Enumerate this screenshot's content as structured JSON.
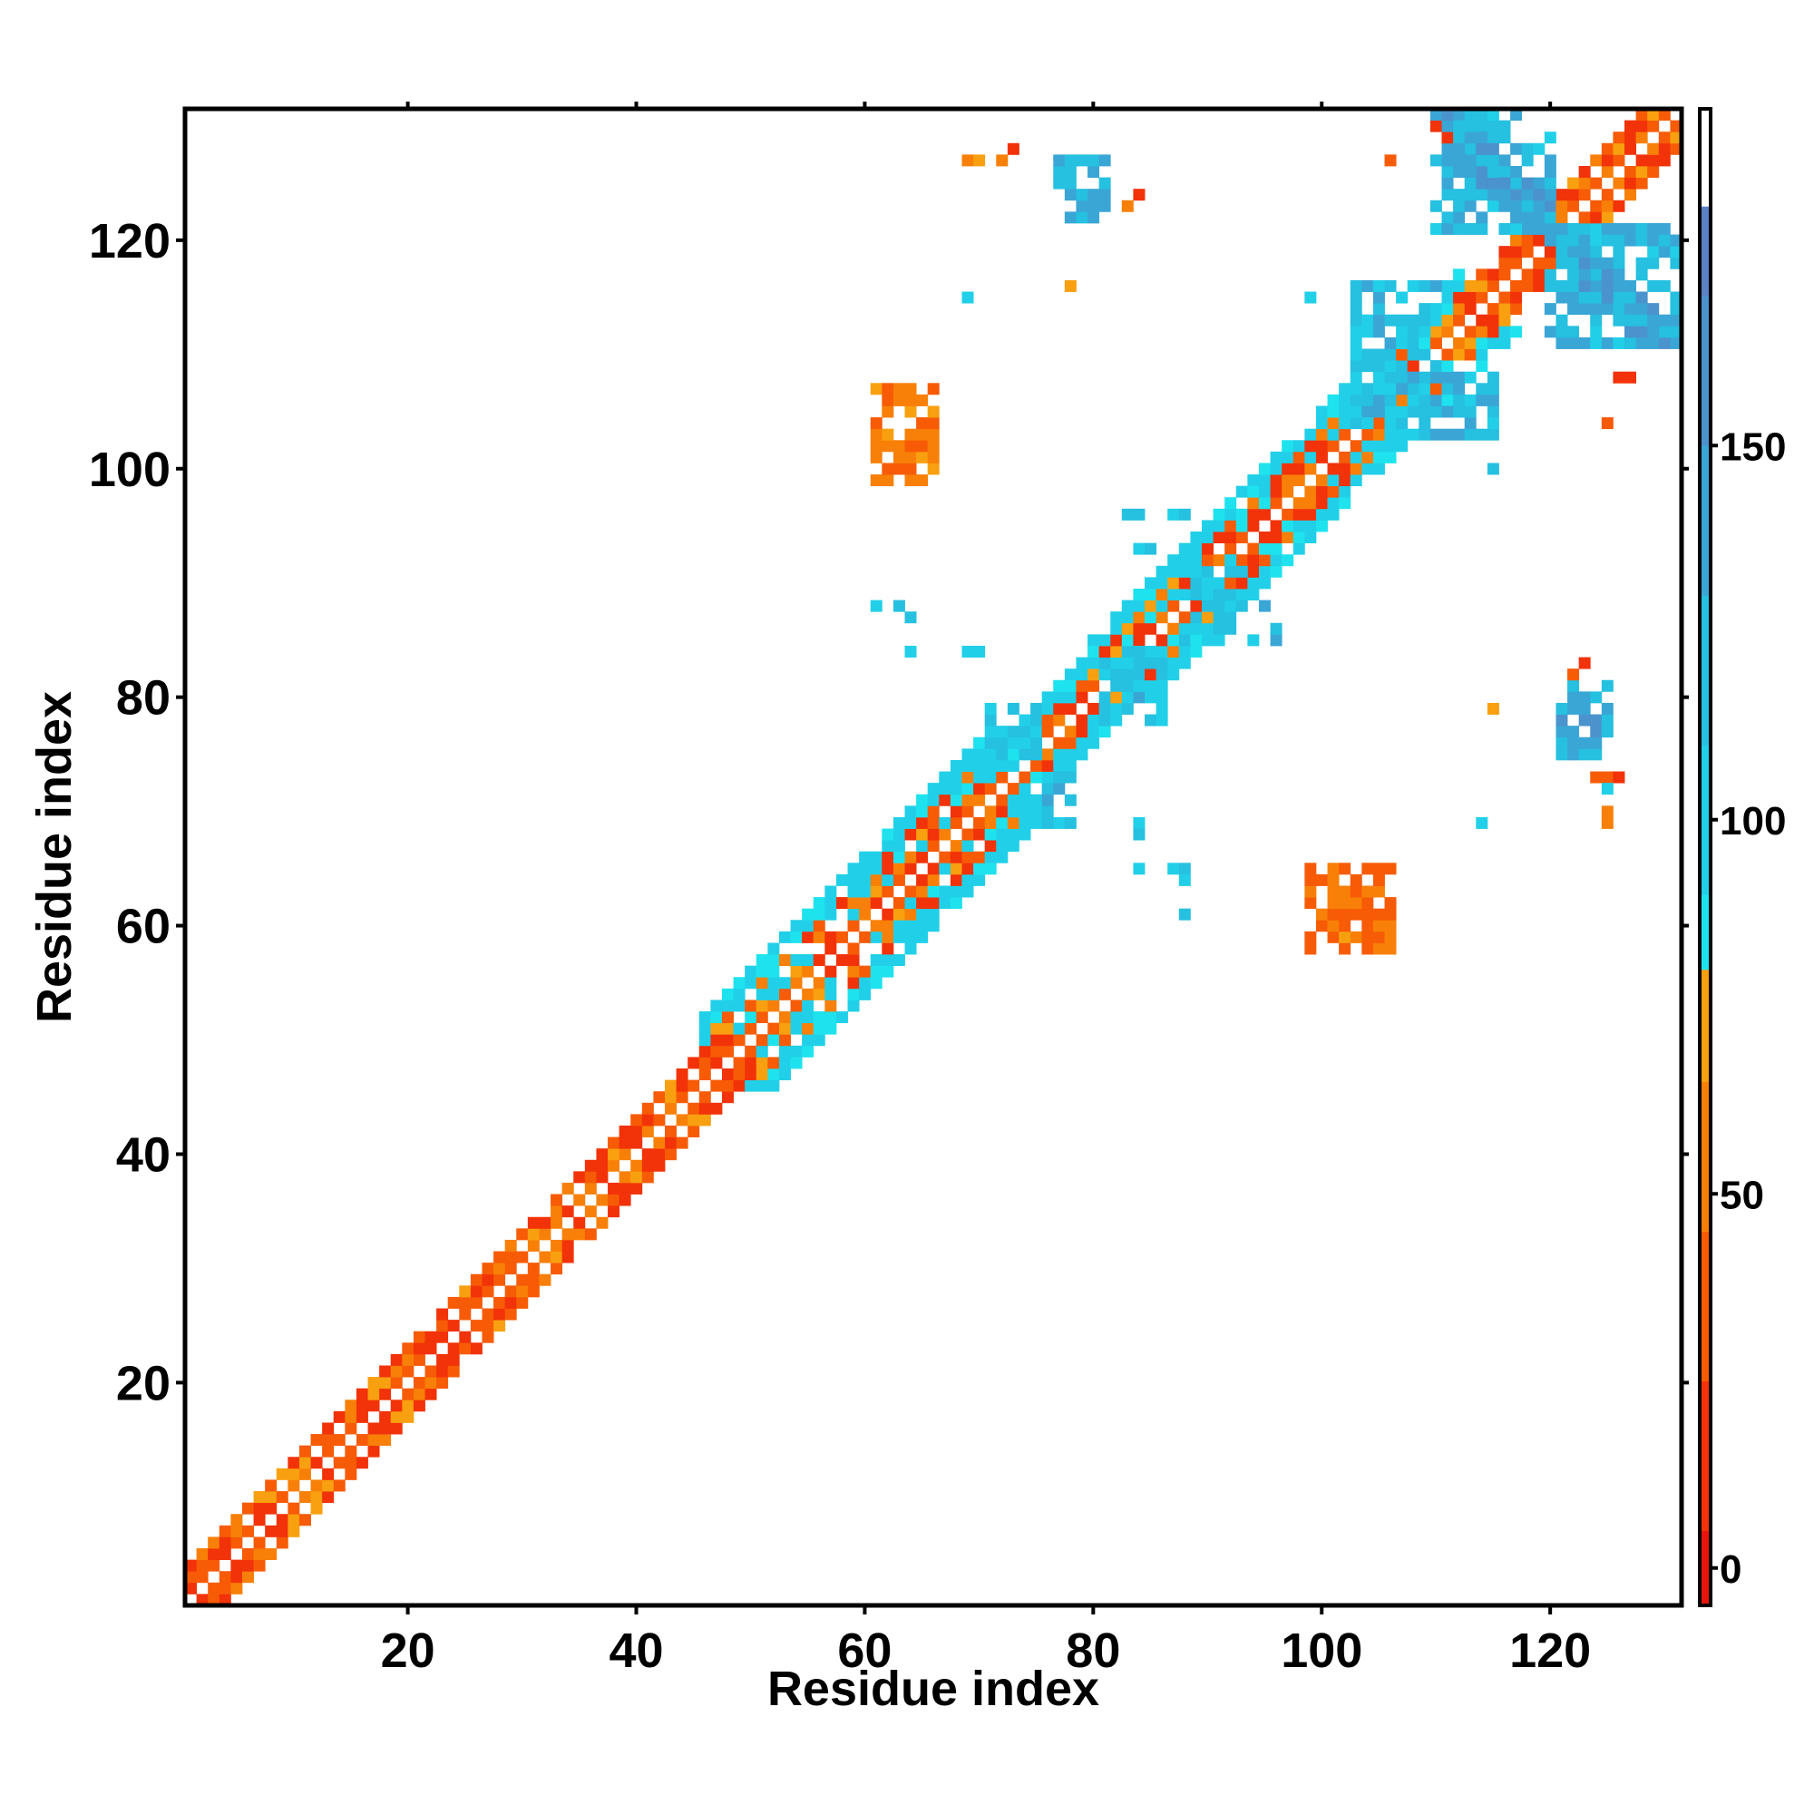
{
  "chart_data": {
    "type": "heatmap",
    "xlabel": "Residue index",
    "ylabel": "Residue index",
    "xlim": [
      1,
      131
    ],
    "ylim": [
      1,
      131
    ],
    "x_ticks": [
      20,
      40,
      60,
      80,
      100,
      120
    ],
    "y_ticks": [
      20,
      40,
      60,
      80,
      100,
      120
    ],
    "colorbar": {
      "range": [
        -5,
        195
      ],
      "ticks": [
        0,
        50,
        100,
        150
      ],
      "bands": [
        {
          "from": -5,
          "to": 5,
          "color": "#e8150c"
        },
        {
          "from": 5,
          "to": 25,
          "color": "#f23208"
        },
        {
          "from": 25,
          "to": 45,
          "color": "#f75b06"
        },
        {
          "from": 45,
          "to": 65,
          "color": "#f88008"
        },
        {
          "from": 65,
          "to": 80,
          "color": "#f9a010"
        },
        {
          "from": 80,
          "to": 90,
          "color": "#1ee3ee"
        },
        {
          "from": 90,
          "to": 110,
          "color": "#21d0e8"
        },
        {
          "from": 110,
          "to": 130,
          "color": "#26c0e0"
        },
        {
          "from": 130,
          "to": 150,
          "color": "#3aa6d6"
        },
        {
          "from": 150,
          "to": 170,
          "color": "#4b93cc"
        },
        {
          "from": 170,
          "to": 182,
          "color": "#5a82c4"
        },
        {
          "from": 182,
          "to": 195,
          "color": "#ffffff"
        }
      ]
    },
    "diagonal_band": [
      {
        "from": 1,
        "to": 46,
        "width": 3,
        "palette": "warm",
        "seed": 3
      },
      {
        "from": 46,
        "to": 70,
        "width": 6,
        "palette": "mix",
        "seed": 7
      },
      {
        "from": 70,
        "to": 80,
        "width": 4,
        "palette": "mix",
        "seed": 11
      },
      {
        "from": 80,
        "to": 97,
        "width": 5,
        "palette": "mix",
        "seed": 13
      },
      {
        "from": 97,
        "to": 112,
        "width": 5,
        "palette": "mix",
        "seed": 17
      },
      {
        "from": 112,
        "to": 131,
        "width": 3,
        "palette": "warm",
        "seed": 19
      }
    ],
    "regions": [
      {
        "x": [
          110,
          120
        ],
        "y": [
          121,
          131
        ],
        "value": 125,
        "note": "antidiagonal strand pair"
      },
      {
        "x": [
          120,
          131
        ],
        "y": [
          111,
          121
        ],
        "value": 125
      },
      {
        "x": [
          77,
          81
        ],
        "y": [
          122,
          127
        ],
        "value": 135
      },
      {
        "x": [
          103,
          110
        ],
        "y": [
          104,
          116
        ],
        "value": 115
      },
      {
        "x": [
          109,
          115
        ],
        "y": [
          103,
          108
        ],
        "value": 125
      },
      {
        "x": [
          81,
          86
        ],
        "y": [
          78,
          84
        ],
        "value": 110
      },
      {
        "x": [
          88,
          93
        ],
        "y": [
          85,
          92
        ],
        "value": 110
      },
      {
        "x": [
          71,
          75
        ],
        "y": [
          74,
          79
        ],
        "value": 110
      },
      {
        "x": [
          76,
          78
        ],
        "y": [
          69,
          73
        ],
        "value": 120
      },
      {
        "x": [
          121,
          125
        ],
        "y": [
          75,
          81
        ],
        "value": 135
      },
      {
        "x": [
          61,
          66
        ],
        "y": [
          99,
          107
        ],
        "value": 50
      },
      {
        "x": [
          99,
          106
        ],
        "y": [
          58,
          65
        ],
        "value": 45
      }
    ],
    "points": [
      [
        69,
        127,
        60
      ],
      [
        70,
        127,
        70
      ],
      [
        72,
        127,
        45
      ],
      [
        73,
        128,
        10
      ],
      [
        84,
        124,
        10
      ],
      [
        83,
        123,
        50
      ],
      [
        106,
        127,
        40
      ],
      [
        111,
        129,
        5
      ],
      [
        110,
        130,
        10
      ],
      [
        78,
        116,
        70
      ],
      [
        69,
        115,
        100
      ],
      [
        99,
        115,
        100
      ],
      [
        126,
        108,
        20
      ],
      [
        127,
        108,
        10
      ],
      [
        125,
        104,
        30
      ],
      [
        115,
        104,
        100
      ],
      [
        115,
        100,
        120
      ],
      [
        61,
        88,
        100
      ],
      [
        63,
        88,
        110
      ],
      [
        64,
        87,
        120
      ],
      [
        64,
        84,
        100
      ],
      [
        69,
        84,
        100
      ],
      [
        70,
        84,
        100
      ],
      [
        94,
        85,
        100
      ],
      [
        96,
        85,
        130
      ],
      [
        96,
        86,
        120
      ],
      [
        95,
        88,
        130
      ],
      [
        83,
        96,
        110
      ],
      [
        84,
        96,
        110
      ],
      [
        87,
        96,
        100
      ],
      [
        88,
        96,
        120
      ],
      [
        84,
        93,
        100
      ],
      [
        85,
        93,
        110
      ],
      [
        76,
        69,
        110
      ],
      [
        77,
        69,
        100
      ],
      [
        84,
        69,
        100
      ],
      [
        84,
        68,
        110
      ],
      [
        84,
        65,
        100
      ],
      [
        87,
        65,
        100
      ],
      [
        88,
        65,
        110
      ],
      [
        88,
        64,
        100
      ],
      [
        88,
        61,
        110
      ],
      [
        115,
        79,
        70
      ],
      [
        114,
        69,
        100
      ],
      [
        124,
        73,
        40
      ],
      [
        125,
        73,
        30
      ],
      [
        126,
        73,
        10
      ],
      [
        125,
        72,
        100
      ],
      [
        125,
        70,
        60
      ],
      [
        125,
        69,
        50
      ],
      [
        123,
        83,
        10
      ],
      [
        122,
        82,
        30
      ]
    ]
  }
}
